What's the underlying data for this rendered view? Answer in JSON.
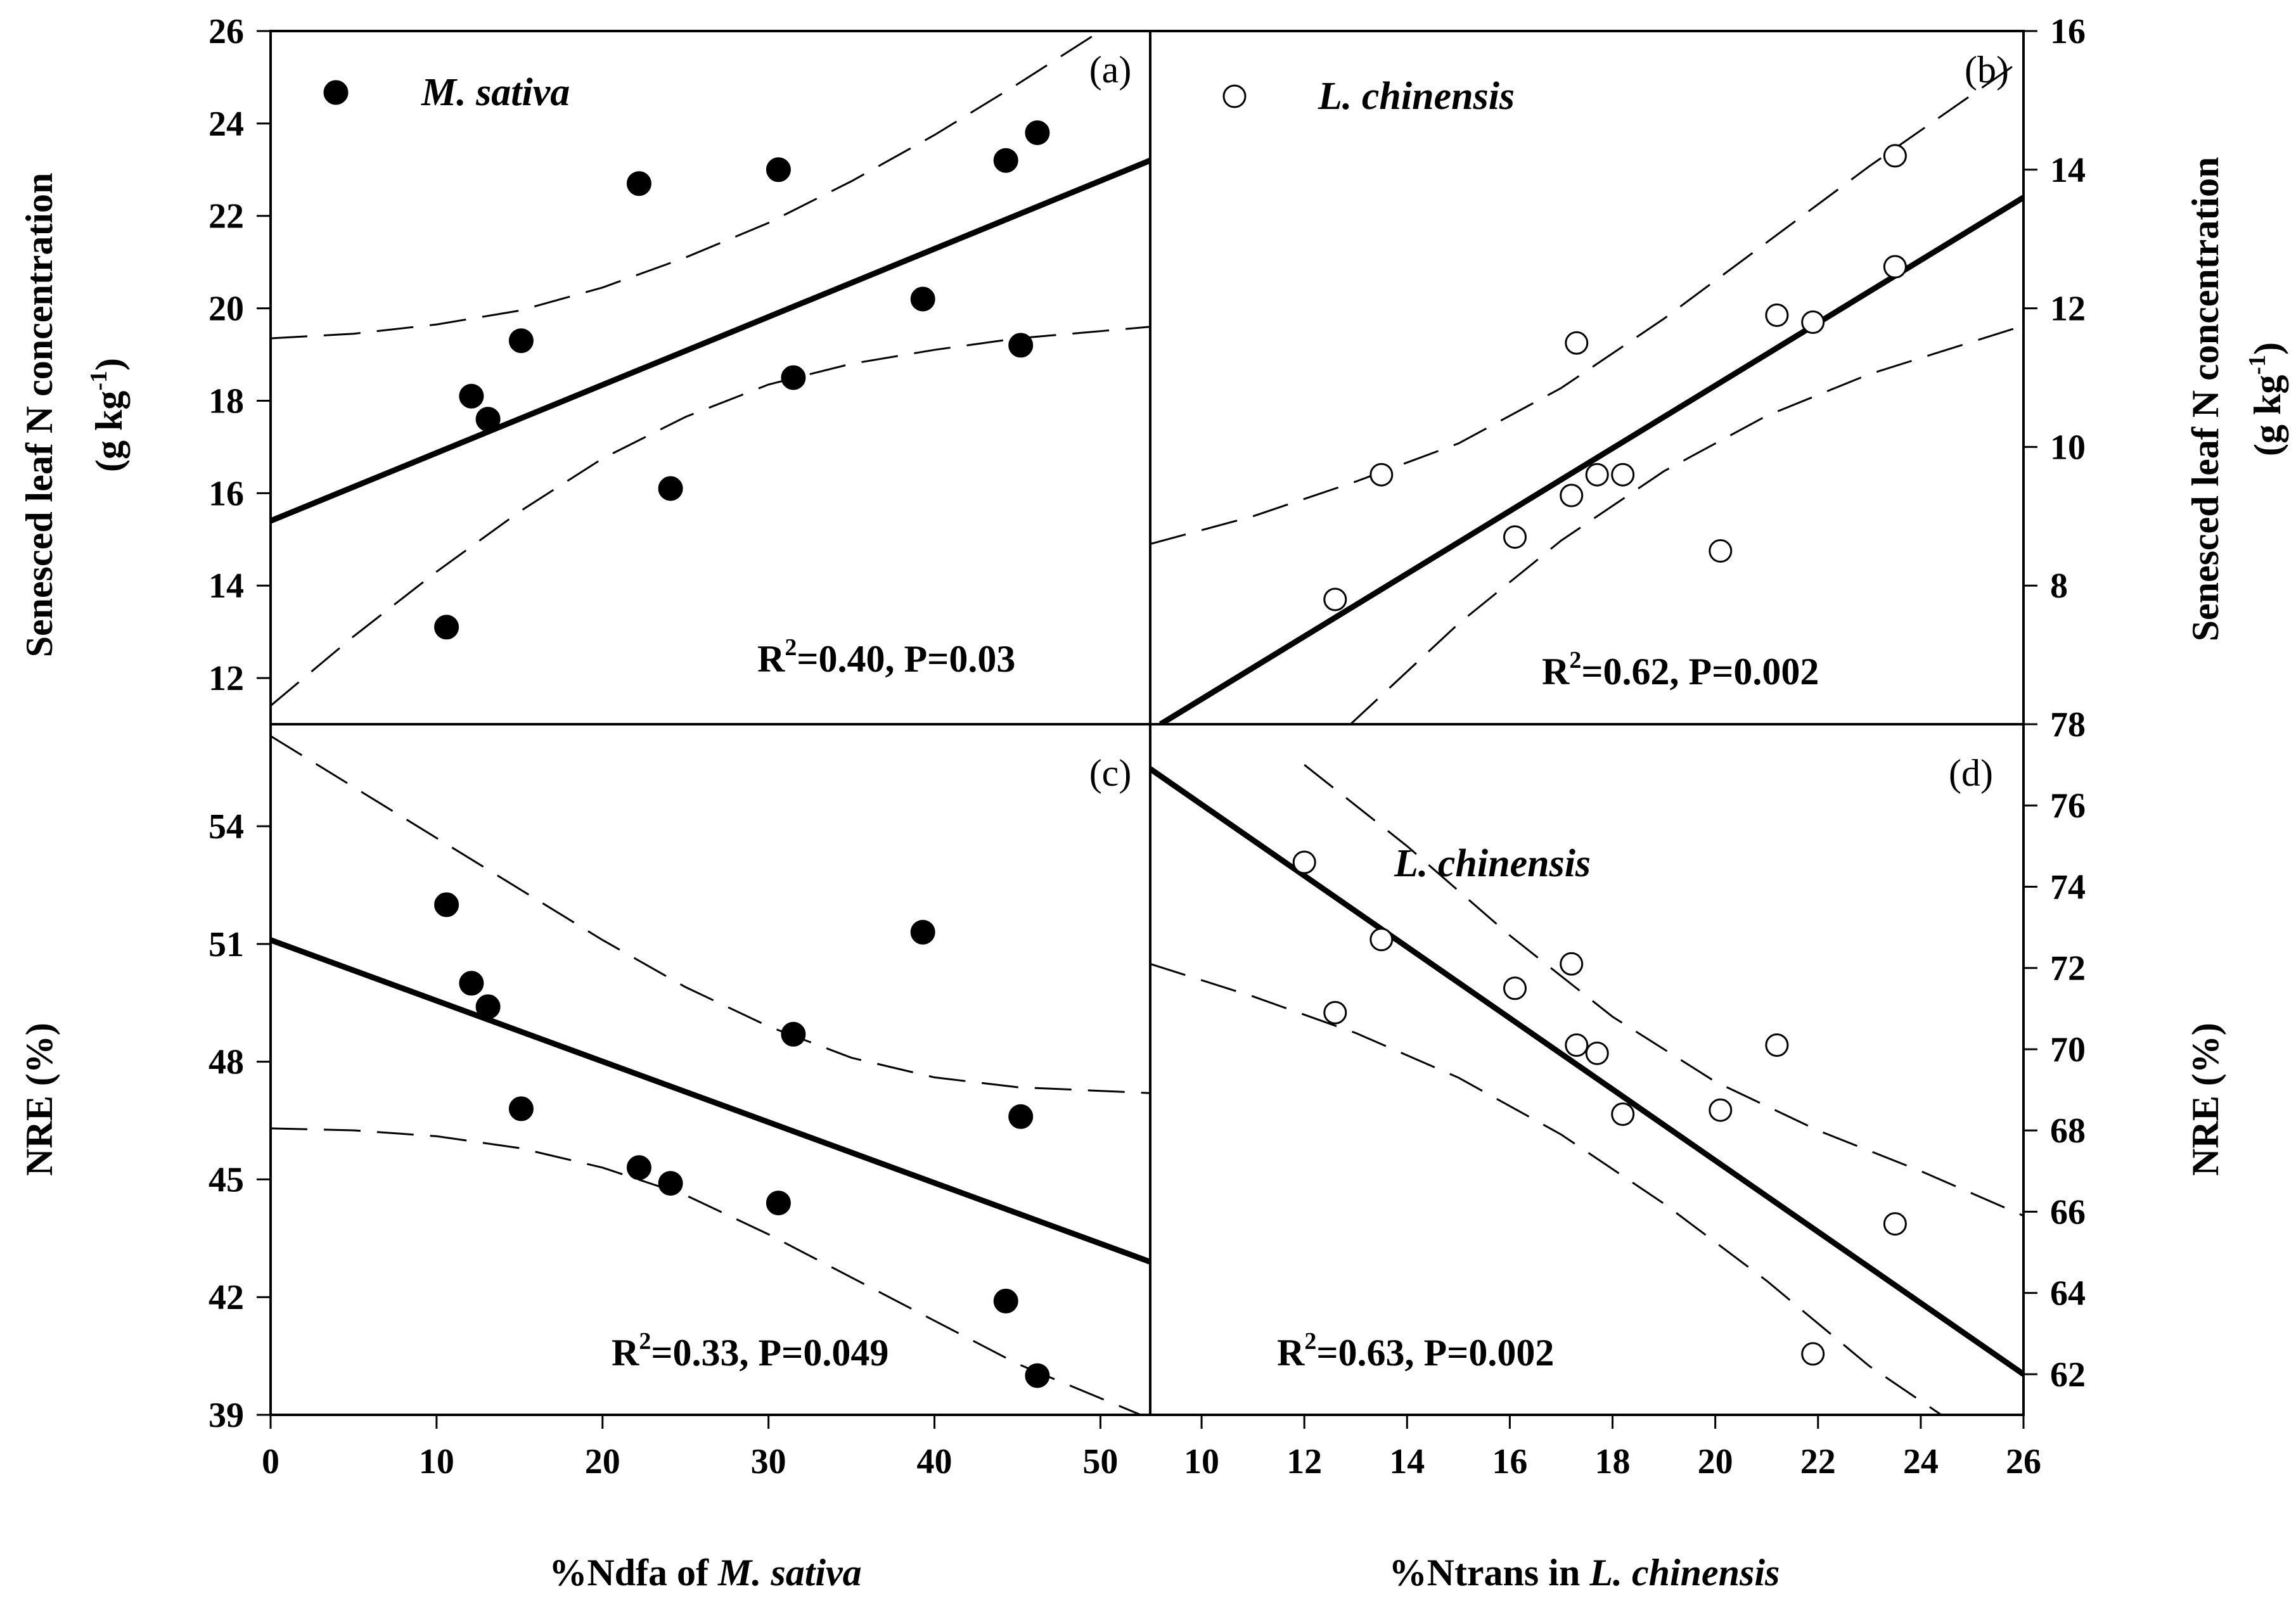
{
  "chart_data": [
    {
      "id": "a",
      "type": "scatter",
      "panel_label": "(a)",
      "legend_label": "M. sativa",
      "marker": "filled",
      "xlim": [
        0,
        53
      ],
      "ylim": [
        11,
        26
      ],
      "yticks": [
        12,
        14,
        16,
        18,
        20,
        22,
        24,
        26
      ],
      "ytick_side": "left",
      "ylabel_line1": "Senesced leaf N concentration",
      "ylabel_line2a": "(g kg",
      "ylabel_sup": "-1",
      "ylabel_line2b": ")",
      "stats_r": "R",
      "stats_sup": "2",
      "stats_rest": "=0.40, P=0.03",
      "points": [
        [
          10.6,
          13.1
        ],
        [
          12.1,
          18.1
        ],
        [
          13.1,
          17.6
        ],
        [
          15.1,
          19.3
        ],
        [
          22.2,
          22.7
        ],
        [
          24.1,
          16.1
        ],
        [
          30.6,
          23.0
        ],
        [
          31.5,
          18.5
        ],
        [
          39.3,
          20.2
        ],
        [
          44.3,
          23.2
        ],
        [
          45.2,
          19.2
        ],
        [
          46.2,
          23.8
        ]
      ],
      "fit_line": [
        [
          0,
          15.4
        ],
        [
          53,
          23.2
        ]
      ],
      "ci_upper": [
        [
          0,
          19.35
        ],
        [
          5,
          19.45
        ],
        [
          10,
          19.65
        ],
        [
          15,
          19.95
        ],
        [
          20,
          20.45
        ],
        [
          25,
          21.1
        ],
        [
          30,
          21.85
        ],
        [
          35,
          22.75
        ],
        [
          40,
          23.75
        ],
        [
          45,
          24.85
        ],
        [
          50,
          26.0
        ]
      ],
      "ci_lower": [
        [
          0,
          11.4
        ],
        [
          5,
          12.9
        ],
        [
          10,
          14.3
        ],
        [
          15,
          15.6
        ],
        [
          20,
          16.75
        ],
        [
          25,
          17.65
        ],
        [
          30,
          18.35
        ],
        [
          35,
          18.8
        ],
        [
          40,
          19.1
        ],
        [
          45,
          19.35
        ],
        [
          53,
          19.6
        ]
      ]
    },
    {
      "id": "b",
      "type": "scatter",
      "panel_label": "(b)",
      "legend_label": "L. chinensis",
      "marker": "open",
      "xlim": [
        9,
        26
      ],
      "ylim": [
        6,
        16
      ],
      "yticks": [
        8,
        10,
        12,
        14,
        16
      ],
      "ytick_side": "right",
      "ylabel_line1": "Senesced leaf N concentration",
      "ylabel_line2a": "(g kg",
      "ylabel_sup": "-1",
      "ylabel_line2b": ")",
      "stats_r": "R",
      "stats_sup": "2",
      "stats_rest": "=0.62, P=0.002",
      "points": [
        [
          12.6,
          7.8
        ],
        [
          13.5,
          9.6
        ],
        [
          16.1,
          8.7
        ],
        [
          17.2,
          9.3
        ],
        [
          17.3,
          11.5
        ],
        [
          17.7,
          9.6
        ],
        [
          18.2,
          9.6
        ],
        [
          20.1,
          8.5
        ],
        [
          21.2,
          11.9
        ],
        [
          21.9,
          11.8
        ],
        [
          23.5,
          12.6
        ],
        [
          23.5,
          14.2
        ]
      ],
      "fit_line": [
        [
          9.2,
          6.0
        ],
        [
          26,
          13.6
        ]
      ],
      "ci_upper": [
        [
          9,
          8.6
        ],
        [
          11,
          9.0
        ],
        [
          13,
          9.5
        ],
        [
          15,
          10.05
        ],
        [
          17,
          10.85
        ],
        [
          19,
          11.85
        ],
        [
          21,
          12.95
        ],
        [
          23,
          14.05
        ],
        [
          26,
          15.6
        ]
      ],
      "ci_lower": [
        [
          12.9,
          6.0
        ],
        [
          15,
          7.45
        ],
        [
          17,
          8.65
        ],
        [
          19,
          9.65
        ],
        [
          21,
          10.45
        ],
        [
          23,
          11.05
        ],
        [
          26,
          11.75
        ]
      ]
    },
    {
      "id": "c",
      "type": "scatter",
      "panel_label": "(c)",
      "legend_label": "",
      "marker": "filled",
      "xlim": [
        0,
        53
      ],
      "ylim": [
        39,
        56.6
      ],
      "yticks": [
        39,
        42,
        45,
        48,
        51,
        54
      ],
      "ytick_side": "left",
      "xticks": [
        0,
        10,
        20,
        30,
        40,
        50
      ],
      "xlabel_pre": "%Ndfa of ",
      "xlabel_italic": "M. sativa",
      "ylabel_line1": "NRE (%)",
      "stats_r": "R",
      "stats_sup": "2",
      "stats_rest": "=0.33, P=0.049",
      "points": [
        [
          10.6,
          52.0
        ],
        [
          12.1,
          50.0
        ],
        [
          13.1,
          49.4
        ],
        [
          15.1,
          46.8
        ],
        [
          22.2,
          45.3
        ],
        [
          24.1,
          44.9
        ],
        [
          30.6,
          44.4
        ],
        [
          31.5,
          48.7
        ],
        [
          39.3,
          51.3
        ],
        [
          44.3,
          41.9
        ],
        [
          45.2,
          46.6
        ],
        [
          46.2,
          40.0
        ]
      ],
      "fit_line": [
        [
          0,
          51.1
        ],
        [
          53,
          42.9
        ]
      ],
      "ci_upper": [
        [
          0,
          56.3
        ],
        [
          5,
          55.0
        ],
        [
          10,
          53.7
        ],
        [
          15,
          52.4
        ],
        [
          20,
          51.1
        ],
        [
          25,
          49.9
        ],
        [
          30,
          48.9
        ],
        [
          35,
          48.1
        ],
        [
          40,
          47.6
        ],
        [
          45,
          47.35
        ],
        [
          53,
          47.2
        ]
      ],
      "ci_lower": [
        [
          0,
          46.3
        ],
        [
          5,
          46.25
        ],
        [
          10,
          46.1
        ],
        [
          15,
          45.8
        ],
        [
          20,
          45.3
        ],
        [
          25,
          44.6
        ],
        [
          30,
          43.6
        ],
        [
          35,
          42.5
        ],
        [
          40,
          41.4
        ],
        [
          45,
          40.3
        ],
        [
          53,
          38.9
        ]
      ]
    },
    {
      "id": "d",
      "type": "scatter",
      "panel_label": "(d)",
      "legend_label": "",
      "marker": "open",
      "xlim": [
        9,
        26
      ],
      "ylim": [
        61,
        78
      ],
      "yticks": [
        62,
        64,
        66,
        68,
        70,
        72,
        74,
        76,
        78
      ],
      "ytick_side": "right",
      "xticks": [
        10,
        12,
        14,
        16,
        18,
        20,
        22,
        24,
        26
      ],
      "xlabel_pre": "%Ntrans in ",
      "xlabel_italic": "L. chinensis",
      "ylabel_line1": "NRE (%)",
      "species_label": "L. chinensis",
      "stats_r": "R",
      "stats_sup": "2",
      "stats_rest": "=0.63, P=0.002",
      "points": [
        [
          12.0,
          74.6
        ],
        [
          12.6,
          70.9
        ],
        [
          13.5,
          72.7
        ],
        [
          16.1,
          71.5
        ],
        [
          17.2,
          72.1
        ],
        [
          17.3,
          70.1
        ],
        [
          17.7,
          69.9
        ],
        [
          18.2,
          68.4
        ],
        [
          20.1,
          68.5
        ],
        [
          21.2,
          70.1
        ],
        [
          21.9,
          62.5
        ],
        [
          23.5,
          65.7
        ]
      ],
      "fit_line": [
        [
          9,
          76.9
        ],
        [
          26,
          62.0
        ]
      ],
      "ci_upper": [
        [
          12.0,
          77.0
        ],
        [
          14,
          75.0
        ],
        [
          16,
          72.8
        ],
        [
          18,
          70.8
        ],
        [
          20,
          69.2
        ],
        [
          22,
          68.0
        ],
        [
          24,
          67.0
        ],
        [
          26,
          65.9
        ]
      ],
      "ci_lower": [
        [
          9,
          72.1
        ],
        [
          11,
          71.3
        ],
        [
          13,
          70.4
        ],
        [
          15,
          69.3
        ],
        [
          17,
          67.9
        ],
        [
          19,
          66.2
        ],
        [
          21,
          64.3
        ],
        [
          23,
          62.2
        ],
        [
          24.4,
          61.0
        ]
      ]
    }
  ]
}
